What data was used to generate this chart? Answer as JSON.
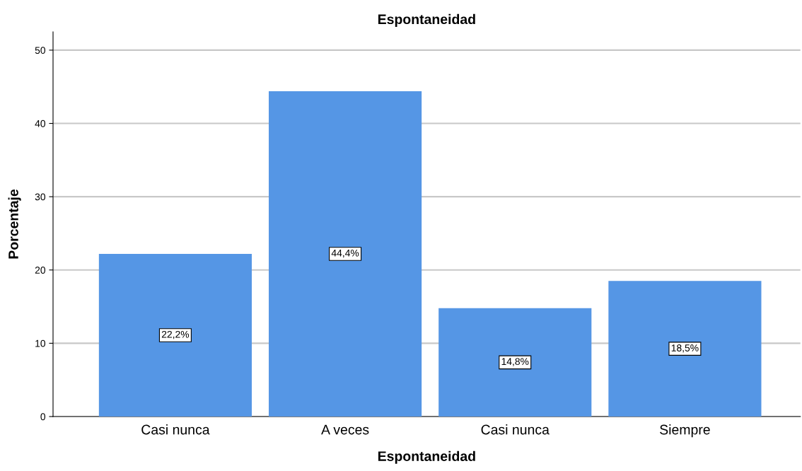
{
  "chart_data": {
    "type": "bar",
    "title": "Espontaneidad",
    "xlabel": "Espontaneidad",
    "ylabel": "Porcentaje",
    "categories": [
      "Casi nunca",
      "A veces",
      "Casi nunca",
      "Siempre"
    ],
    "values": [
      22.2,
      44.4,
      14.8,
      18.5
    ],
    "value_labels": [
      "22,2%",
      "44,4%",
      "14,8%",
      "18,5%"
    ],
    "color": "#5596e5",
    "ylim": [
      0,
      52.5
    ],
    "yticks": [
      0,
      10,
      20,
      30,
      40,
      50
    ],
    "grid": "y",
    "legend": false
  }
}
